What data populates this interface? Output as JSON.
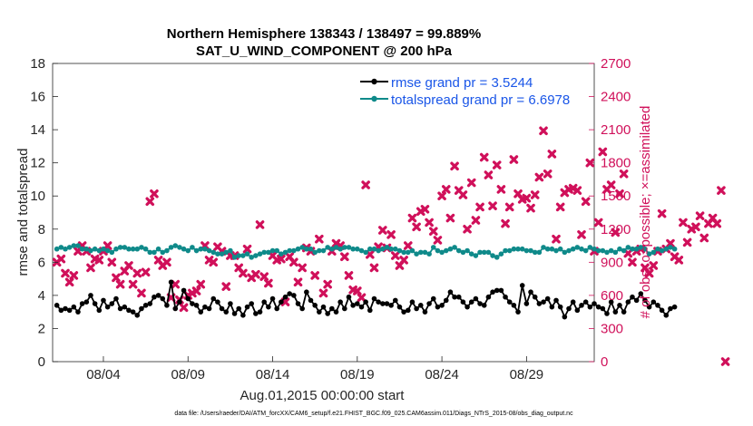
{
  "chart_data": {
    "type": "line",
    "title": "Northern Hemisphere 138343 / 138497 = 99.889%",
    "subtitle": "SAT_U_WIND_COMPONENT @ 200 hPa",
    "xlabel": "Aug.01,2015 00:00:00 start",
    "ylabel": "rmse and totalspread",
    "ylabel_right": "# of obs: o=possible; ×=assimilated",
    "xlim": [
      1,
      33
    ],
    "ylim": [
      0,
      18
    ],
    "ylim_right": [
      0,
      2700
    ],
    "x_ticks": [
      {
        "x": 4,
        "label": "08/04"
      },
      {
        "x": 9,
        "label": "08/09"
      },
      {
        "x": 14,
        "label": "08/14"
      },
      {
        "x": 19,
        "label": "08/19"
      },
      {
        "x": 24,
        "label": "08/24"
      },
      {
        "x": 29,
        "label": "08/29"
      }
    ],
    "y_ticks": [
      "0",
      "2",
      "4",
      "6",
      "8",
      "10",
      "12",
      "14",
      "16",
      "18"
    ],
    "y_ticks_right": [
      "0",
      "300",
      "600",
      "900",
      "1200",
      "1500",
      "1800",
      "2100",
      "2400",
      "2700"
    ],
    "x_start": 1.25,
    "x_step": 0.25,
    "legend_position": "top-right",
    "series": [
      {
        "name": "rmse grand pr = 3.5244",
        "color": "#000000",
        "marker": "circle",
        "axis": "left",
        "values": [
          3.4,
          3.1,
          3.2,
          3.1,
          3.3,
          3.0,
          3.5,
          3.6,
          4.0,
          3.5,
          3.1,
          3.7,
          3.3,
          3.5,
          3.8,
          3.2,
          3.3,
          3.1,
          3.0,
          2.8,
          3.2,
          3.4,
          3.5,
          3.9,
          4.0,
          3.8,
          3.4,
          4.8,
          3.2,
          3.6,
          4.3,
          3.8,
          3.5,
          3.4,
          3.0,
          3.3,
          3.2,
          3.8,
          3.6,
          3.2,
          3.0,
          3.5,
          2.9,
          3.2,
          2.8,
          3.3,
          3.5,
          2.9,
          3.0,
          3.6,
          3.3,
          3.8,
          3.2,
          3.6,
          3.9,
          4.1,
          4.0,
          3.5,
          3.2,
          4.2,
          3.7,
          3.4,
          3.0,
          3.3,
          2.9,
          3.2,
          3.0,
          3.6,
          3.2,
          3.9,
          3.4,
          3.5,
          3.3,
          3.6,
          3.1,
          3.8,
          3.6,
          3.5,
          3.5,
          3.4,
          3.7,
          3.3,
          3.0,
          3.1,
          3.6,
          3.2,
          3.4,
          3.0,
          3.5,
          3.8,
          3.3,
          3.4,
          3.7,
          4.2,
          3.9,
          3.9,
          3.6,
          3.3,
          3.6,
          3.8,
          3.5,
          3.4,
          3.9,
          4.2,
          4.3,
          4.3,
          3.9,
          3.6,
          3.4,
          3.0,
          4.6,
          3.5,
          4.2,
          3.9,
          3.5,
          3.6,
          3.8,
          3.3,
          3.7,
          3.3,
          2.7,
          3.2,
          3.6,
          3.1,
          3.4,
          3.6,
          3.3,
          3.5,
          3.3,
          3.2,
          2.9,
          3.6,
          3.0,
          3.4,
          3.0,
          3.6,
          3.9,
          3.7,
          4.1,
          3.7,
          3.3,
          3.6,
          3.4,
          3.1,
          2.8,
          3.2,
          3.3
        ]
      },
      {
        "name": "totalspread grand pr = 6.6978",
        "color": "#0f8a8a",
        "marker": "circle",
        "axis": "left",
        "values": [
          6.8,
          6.9,
          6.8,
          6.9,
          7.0,
          7.0,
          6.8,
          6.8,
          6.7,
          6.8,
          6.7,
          6.8,
          6.7,
          6.6,
          6.8,
          6.9,
          6.9,
          6.8,
          6.8,
          6.8,
          6.9,
          6.8,
          6.6,
          6.6,
          6.8,
          6.6,
          6.7,
          6.9,
          7.0,
          6.9,
          6.8,
          6.7,
          6.9,
          6.7,
          6.8,
          6.8,
          6.7,
          6.6,
          6.5,
          6.5,
          6.6,
          6.7,
          6.3,
          6.4,
          6.4,
          6.5,
          6.3,
          6.4,
          6.5,
          6.6,
          6.6,
          6.7,
          6.7,
          6.5,
          6.6,
          6.7,
          6.7,
          6.8,
          6.9,
          6.8,
          6.8,
          6.6,
          6.7,
          6.7,
          6.9,
          6.8,
          6.9,
          6.8,
          6.9,
          6.9,
          6.8,
          6.8,
          6.7,
          6.6,
          6.8,
          6.8,
          6.7,
          6.8,
          6.9,
          6.8,
          6.8,
          6.7,
          6.6,
          6.6,
          6.7,
          6.5,
          6.6,
          6.6,
          6.5,
          6.9,
          6.7,
          6.6,
          6.7,
          6.8,
          6.9,
          6.7,
          6.6,
          6.7,
          6.5,
          6.4,
          6.6,
          6.6,
          6.6,
          6.4,
          6.3,
          6.5,
          6.7,
          6.7,
          6.8,
          6.8,
          6.8,
          6.7,
          6.7,
          6.6,
          6.6,
          6.9,
          6.8,
          6.8,
          6.7,
          6.8,
          6.6,
          6.7,
          6.8,
          6.9,
          6.8,
          6.7,
          6.9,
          6.8,
          6.7,
          6.7,
          6.6,
          6.7,
          6.6,
          6.8,
          6.7,
          6.9,
          6.8,
          6.8,
          6.9,
          6.8,
          6.5,
          6.6,
          6.8,
          6.7,
          6.8,
          6.9,
          6.8
        ]
      }
    ],
    "obs_assimilated": {
      "name": "# of obs assimilated",
      "color": "#d0105a",
      "marker": "x",
      "axis": "right",
      "values": [
        900,
        930,
        800,
        720,
        780,
        1000,
        1050,
        1000,
        850,
        930,
        920,
        1000,
        1050,
        900,
        760,
        700,
        820,
        870,
        700,
        800,
        620,
        810,
        1450,
        1520,
        920,
        870,
        900,
        580,
        700,
        560,
        490,
        600,
        620,
        640,
        700,
        1050,
        920,
        900,
        1040,
        1000,
        680,
        960,
        960,
        850,
        800,
        1020,
        760,
        790,
        1240,
        770,
        710,
        960,
        920,
        930,
        540,
        950,
        900,
        720,
        850,
        1030,
        1000,
        780,
        1110,
        620,
        700,
        1000,
        1070,
        1050,
        950,
        780,
        650,
        640,
        580,
        1600,
        970,
        850,
        1040,
        1190,
        1030,
        1150,
        960,
        870,
        920,
        1050,
        1300,
        1220,
        1360,
        1380,
        1260,
        1180,
        1100,
        1500,
        1560,
        1300,
        1770,
        1550,
        1510,
        1200,
        1620,
        1280,
        1400,
        1850,
        1690,
        1410,
        1780,
        1560,
        1250,
        1400,
        1830,
        1520,
        1470,
        1480,
        1390,
        1510,
        1670,
        2090,
        1700,
        1880,
        1110,
        1400,
        1530,
        1560,
        1570,
        1550,
        1150,
        1450,
        1800,
        1000,
        1260,
        1900,
        1560,
        1600,
        1170,
        1520,
        1700,
        980,
        900,
        1000,
        1020,
        850,
        800,
        870,
        1000,
        1340,
        1020,
        1070,
        950,
        920,
        1260,
        1080,
        1200,
        1220,
        1320,
        1120,
        1250,
        1300,
        1250,
        1550,
        0
      ]
    }
  },
  "footnote": "data file: /Users/raeder/DAI/ATM_forcXX/CAM6_setup/f.e21.FHIST_BGC.f09_025.CAM6assim.011/Diags_NTrS_2015-08/obs_diag_output.nc"
}
